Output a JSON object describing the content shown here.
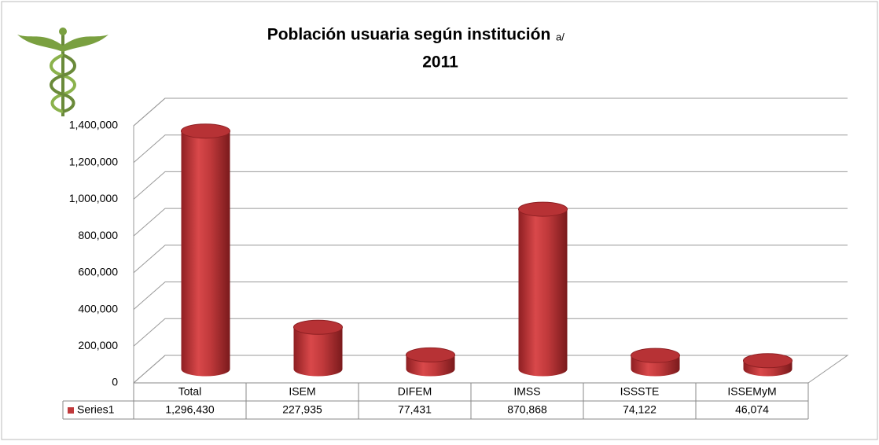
{
  "chart_data": {
    "type": "bar3d",
    "title": "Población usuaria según institución",
    "title_note": "a/",
    "subtitle": "2011",
    "categories": [
      "Total",
      "ISEM",
      "DIFEM",
      "IMSS",
      "ISSSTE",
      "ISSEMyM"
    ],
    "series": [
      {
        "name": "Series1",
        "color": "#c0393b",
        "values": [
          1296430,
          227935,
          77431,
          870868,
          74122,
          46074
        ],
        "value_labels": [
          "1,296,430",
          "227,935",
          "77,431",
          "870,868",
          "74,122",
          "46,074"
        ]
      }
    ],
    "ylim": [
      0,
      1400000
    ],
    "yticks": [
      0,
      {
        "value": 200000,
        "label": "200,000"
      },
      {
        "value": 400000,
        "label": "400,000"
      },
      {
        "value": 600000,
        "label": "600,000"
      },
      {
        "value": 800000,
        "label": "800,000"
      },
      {
        "value": 1000000,
        "label": "1,000,000"
      },
      {
        "value": 1200000,
        "label": "1,200,000"
      },
      {
        "value": 1400000,
        "label": "1,400,000"
      }
    ],
    "grid": true,
    "data_table": true
  }
}
